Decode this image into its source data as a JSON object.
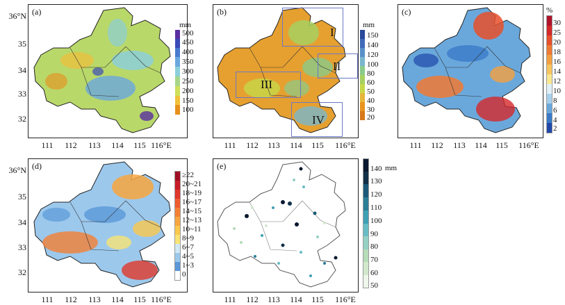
{
  "panels": [
    {
      "label": "(a)",
      "unit": "mm",
      "legend": [
        "500",
        "450",
        "400",
        "350",
        "300",
        "250",
        "200",
        "150",
        "100"
      ],
      "colors": [
        "#5a2fa0",
        "#3a4bb8",
        "#4a7ad0",
        "#6aa8de",
        "#8ccfd8",
        "#a8d68a",
        "#cfe05a",
        "#f0c23a",
        "#e8901c"
      ]
    },
    {
      "label": "(b)",
      "unit": "mm",
      "legend": [
        "150",
        "140",
        "120",
        "100",
        "80",
        "60",
        "50",
        "40",
        "30",
        "20"
      ],
      "colors": [
        "#2a4a9a",
        "#3f6ab8",
        "#5a90c8",
        "#7ab6cc",
        "#8acb8a",
        "#a6d060",
        "#c6d848",
        "#e6b63a",
        "#e8941e",
        "#d8781a"
      ],
      "regions": [
        "I",
        "II",
        "III",
        "IV"
      ]
    },
    {
      "label": "(c)",
      "unit": "%",
      "legend": [
        "30",
        "25",
        "20",
        "18",
        "16",
        "14",
        "12",
        "10",
        "8",
        "6",
        "4",
        "2"
      ],
      "colors": [
        "#b0142a",
        "#d4282a",
        "#e8502c",
        "#f07a34",
        "#f5a040",
        "#f8c660",
        "#f8e890",
        "#e0f0f8",
        "#a8d0ec",
        "#6aa8dc",
        "#3a7ac8",
        "#2048a8"
      ]
    },
    {
      "label": "(d)",
      "unit": "",
      "legend": [
        "≥22",
        "20~21",
        "18~19",
        "16~17",
        "14~15",
        "12~13",
        "10~11",
        "8~9",
        "6~7",
        "4~5",
        "1~3",
        "0"
      ],
      "colors": [
        "#a01024",
        "#c81c28",
        "#e0382c",
        "#ee5c30",
        "#f48034",
        "#f8a640",
        "#fbc84e",
        "#f8e474",
        "#d0e8f4",
        "#9cc8ec",
        "#5a98d8",
        "#ffffff"
      ]
    },
    {
      "label": "(e)",
      "unit": "mm",
      "legend": [
        "140",
        "130",
        "120",
        "110",
        "100",
        "90",
        "80",
        "70",
        "60",
        "50"
      ],
      "colors": [
        "#0a1830",
        "#123048",
        "#1a5a78",
        "#2a7e96",
        "#40a0b4",
        "#68bcc4",
        "#94d0c4",
        "#b6dcb8",
        "#d2e8cc",
        "#eef6ea"
      ]
    }
  ],
  "axes": {
    "lon_labels": [
      "111",
      "112",
      "113",
      "114",
      "115",
      "116°E"
    ],
    "lat_labels": [
      "36°N",
      "35",
      "34",
      "33",
      "32"
    ]
  }
}
